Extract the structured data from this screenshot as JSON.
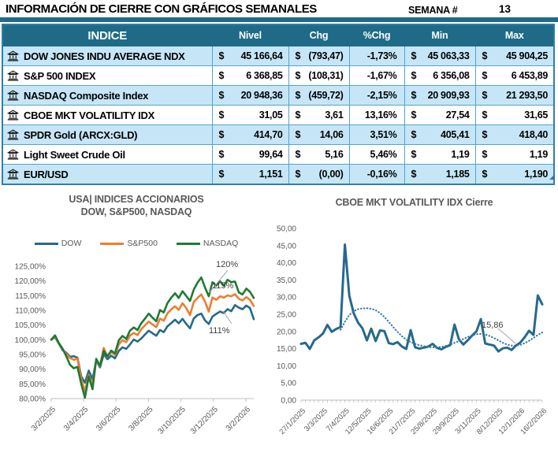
{
  "header": {
    "title": "INFORMACIÓN DE CIERRE CON GRÁFICOS SEMANALES",
    "week_label": "SEMANA #",
    "week_value": "13"
  },
  "table": {
    "columns": [
      "INDICE",
      "Nivel",
      "Chg",
      "%Chg",
      "Min",
      "Max"
    ],
    "currency_symbol": "$",
    "row_icon": "bank-building-icon",
    "rows": [
      {
        "name": "DOW JONES INDU AVERAGE NDX",
        "nivel": "45 166,64",
        "chg": "(793,47)",
        "pct": "-1,73%",
        "min": "45 063,33",
        "max": "45 904,25"
      },
      {
        "name": "S&P 500 INDEX",
        "nivel": "6 368,85",
        "chg": "(108,31)",
        "pct": "-1,67%",
        "min": "6 356,08",
        "max": "6 453,89"
      },
      {
        "name": "NASDAQ Composite Index",
        "nivel": "20 948,36",
        "chg": "(459,72)",
        "pct": "-2,15%",
        "min": "20 909,93",
        "max": "21 293,50"
      },
      {
        "name": "CBOE MKT VOLATILITY IDX",
        "nivel": "31,05",
        "chg": "3,61",
        "pct": "13,16%",
        "min": "27,54",
        "max": "31,65"
      },
      {
        "name": "SPDR Gold (ARCX:GLD)",
        "nivel": "414,70",
        "chg": "14,06",
        "pct": "3,51%",
        "min": "405,41",
        "max": "418,40"
      },
      {
        "name": "Light Sweet Crude Oil",
        "nivel": "99,64",
        "chg": "5,16",
        "pct": "5,46%",
        "min": "1,19",
        "max": "1,19"
      },
      {
        "name": "EUR/USD",
        "nivel": "1,151",
        "chg": "(0,00)",
        "pct": "-0,16%",
        "min": "1,185",
        "max": "1,190"
      }
    ]
  },
  "chart_data": [
    {
      "type": "line",
      "title": "USA| INDICES ACCIONARIOS DOW, S&P500, NASDAQ",
      "title_line1": "USA| INDICES ACCIONARIOS",
      "title_line2": "DOW, S&P500, NASDAQ",
      "legend_position": "top",
      "grid": false,
      "ylim": [
        80,
        125
      ],
      "ytick_step": 5,
      "ytick_format": "percent-comma",
      "x_tick_labels": [
        "3/2/2025",
        "3/4/2025",
        "3/6/2025",
        "3/8/2025",
        "3/10/2025",
        "3/12/2025",
        "3/2/2026"
      ],
      "series": [
        {
          "name": "DOW",
          "color": "#26698C",
          "values": [
            100,
            100.9,
            98.7,
            96.5,
            95.6,
            94.2,
            94.4,
            93.9,
            87.5,
            85.4,
            89.5,
            86.6,
            92.9,
            90.6,
            95.1,
            93.4,
            94.6,
            93.7,
            96.2,
            97.4,
            96.9,
            98.4,
            100.1,
            99.4,
            100.4,
            101.8,
            103.1,
            102.2,
            101.4,
            103.3,
            102.6,
            104.6,
            105.7,
            106.8,
            105.6,
            107.1,
            105.4,
            103.9,
            107.3,
            108.4,
            108.9,
            106.6,
            105.4,
            107.9,
            108.8,
            109.6,
            109.1,
            110.4,
            109.7,
            111.8,
            110.9,
            110.4,
            111.6,
            110.8,
            107.0
          ]
        },
        {
          "name": "S&P500",
          "color": "#ED7D31",
          "values": [
            100,
            101.2,
            98.8,
            96.8,
            95.2,
            93.8,
            93.2,
            93.6,
            86.5,
            82.5,
            88.0,
            84.5,
            93.2,
            91.0,
            97.2,
            94.3,
            95.8,
            94.8,
            98.4,
            99.9,
            99.2,
            101.4,
            102.3,
            101.6,
            103.6,
            104.9,
            106.2,
            105.2,
            104.3,
            107.2,
            106.5,
            109.0,
            110.3,
            111.4,
            110.2,
            112.4,
            110.8,
            108.4,
            112.9,
            114.2,
            115.4,
            113.0,
            109.6,
            114.4,
            113.6,
            114.8,
            114.3,
            115.1,
            114.8,
            115.5,
            113.9,
            113.4,
            114.5,
            113.6,
            111.5
          ]
        },
        {
          "name": "NASDAQ",
          "color": "#1F7A34",
          "values": [
            100,
            101.5,
            99.0,
            97.0,
            94.5,
            91.5,
            90.3,
            90.8,
            85.0,
            80.3,
            87.5,
            83.2,
            93.5,
            91.2,
            96.2,
            94.4,
            96.3,
            95.4,
            99.8,
            101.3,
            100.3,
            103.1,
            104.2,
            103.3,
            105.6,
            107.2,
            108.9,
            107.5,
            106.3,
            110.1,
            109.3,
            112.5,
            114.3,
            115.8,
            114.2,
            116.5,
            114.9,
            113.2,
            117.1,
            119.4,
            121.2,
            117.8,
            114.8,
            119.6,
            118.4,
            119.9,
            118.3,
            120.4,
            119.6,
            119.8,
            116.1,
            115.4,
            117.4,
            116.3,
            114.2
          ]
        }
      ],
      "annotations": [
        {
          "text": "120%"
        },
        {
          "text": "115%"
        },
        {
          "text": "111%"
        }
      ]
    },
    {
      "type": "line",
      "title": "CBOE MKT VOLATILITY IDX Cierre",
      "grid": false,
      "ylim": [
        0,
        50
      ],
      "ytick_step": 5,
      "ytick_format": "number-comma",
      "x_tick_labels": [
        "27/1/2025",
        "3/3/2025",
        "7/4/2025",
        "12/5/2025",
        "16/6/2025",
        "21/7/2025",
        "25/8/2025",
        "29/9/2025",
        "3/11/2025",
        "8/12/2025",
        "12/1/2026",
        "16/2/2026"
      ],
      "x_label_every_n_ticks": 5,
      "series": [
        {
          "name": "close",
          "style": "solid",
          "color": "#26698C",
          "values": [
            16.4,
            16.7,
            14.9,
            17.4,
            18.3,
            19.4,
            21.9,
            19.9,
            20.7,
            21.3,
            45.3,
            30.4,
            25.3,
            22.6,
            20.9,
            17.4,
            20.8,
            17.2,
            20.3,
            20.1,
            16.6,
            16.3,
            16.9,
            15.6,
            14.9,
            20.4,
            15.4,
            15.0,
            15.3,
            15.6,
            16.4,
            15.2,
            14.8,
            15.5,
            16.0,
            22.0,
            17.7,
            16.2,
            17.4,
            18.8,
            20.0,
            23.6,
            16.5,
            16.2,
            15.9,
            14.2,
            15.1,
            15.3,
            14.6,
            15.9,
            16.8,
            18.3,
            20.2,
            19.0,
            30.5,
            27.9
          ]
        },
        {
          "name": "trend",
          "style": "dotted",
          "color": "#3579A4",
          "start_index": 9,
          "values": [
            20.5,
            22.8,
            24.8,
            25.9,
            26.5,
            26.7,
            26.8,
            26.6,
            26.2,
            25.4,
            24.2,
            22.8,
            21.3,
            19.9,
            18.6,
            17.6,
            16.9,
            16.4,
            16.0,
            15.7,
            15.5,
            15.4,
            15.4,
            15.5,
            15.8,
            16.2,
            16.7,
            17.2,
            17.8,
            18.4,
            18.9,
            19.2,
            19.3,
            19.1,
            18.7,
            18.1,
            17.4,
            16.7,
            16.2,
            15.9,
            15.86,
            16.1,
            16.6,
            17.3,
            18.1,
            19.0,
            19.7
          ]
        }
      ],
      "annotations": [
        {
          "text": "15,86"
        }
      ]
    }
  ],
  "colors": {
    "header_teal": "#1F6B87",
    "row_alt_blue": "#C6E6F7",
    "grid_blue": "#54A2D0",
    "outer_border_blue": "#2E7FAB",
    "axis_gray": "#BFBFBF",
    "label_gray": "#595959",
    "annotation_text": "#404040",
    "leader_gray": "#A6A6A6",
    "fill_handle_blue": "#3C6EB5"
  }
}
